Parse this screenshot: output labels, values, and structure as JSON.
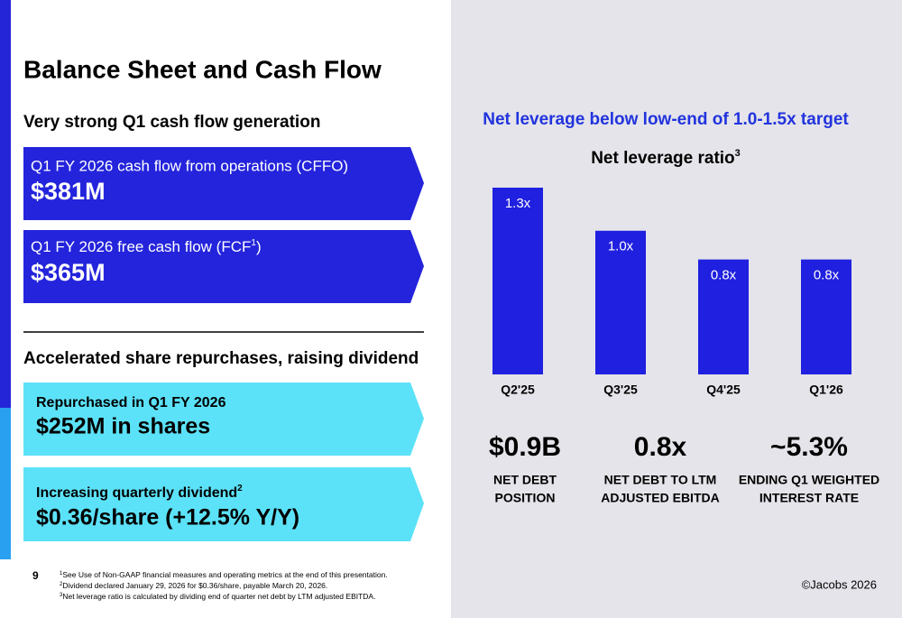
{
  "title": "Balance Sheet and Cash Flow",
  "left": {
    "section1": "Very strong Q1 cash flow generation",
    "cards1": [
      {
        "label": "Q1 FY 2026 cash flow from operations (CFFO)",
        "value": "$381M"
      },
      {
        "label": "Q1 FY 2026 free cash flow (FCF",
        "sup": "1",
        "label_end": ")",
        "value": "$365M"
      }
    ],
    "section2": "Accelerated share repurchases, raising dividend",
    "cards2": [
      {
        "label": "Repurchased in Q1 FY 2026",
        "value": "$252M in shares"
      },
      {
        "label": "Increasing quarterly dividend",
        "sup": "2",
        "value": "$0.36/share (+12.5% Y/Y)"
      }
    ]
  },
  "right_heading": "Net leverage below low-end of 1.0-1.5x target",
  "chart_data": {
    "type": "bar",
    "title": "Net leverage ratio",
    "title_sup": "3",
    "categories": [
      "Q2'25",
      "Q3'25",
      "Q4'25",
      "Q1'26"
    ],
    "values": [
      1.3,
      1.0,
      0.8,
      0.8
    ],
    "value_labels": [
      "1.3x",
      "1.0x",
      "0.8x",
      "0.8x"
    ],
    "color": "#2020e0",
    "ylim": [
      0,
      1.3
    ]
  },
  "kpis": [
    {
      "value": "$0.9B",
      "label_lines": [
        "NET DEBT",
        "POSITION"
      ]
    },
    {
      "value": "0.8x",
      "label_lines": [
        "NET DEBT TO LTM",
        "ADJUSTED EBITDA"
      ]
    },
    {
      "value": "~5.3%",
      "label_lines": [
        "ENDING Q1 WEIGHTED",
        "INTEREST RATE"
      ]
    }
  ],
  "page_number": "9",
  "footnotes": [
    {
      "number": "1",
      "text": "See Use of Non-GAAP financial measures and operating metrics at the end of this presentation."
    },
    {
      "number": "2",
      "text": "Dividend declared January 29, 2026 for $0.36/share, payable March 20, 2026."
    },
    {
      "number": "3",
      "text": "Net leverage ratio is calculated by dividing end of quarter net debt by LTM adjusted EBITDA."
    }
  ],
  "copyright": "©Jacobs 2026"
}
